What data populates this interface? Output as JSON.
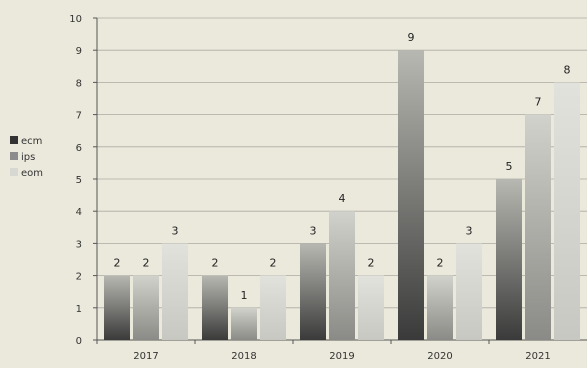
{
  "chart_data": {
    "type": "bar",
    "title": "",
    "xlabel": "",
    "ylabel": "",
    "categories": [
      "2017",
      "2018",
      "2019",
      "2020",
      "2021"
    ],
    "ylim": [
      0,
      10
    ],
    "yticks": [
      "0",
      "1",
      "2",
      "3",
      "4",
      "5",
      "6",
      "7",
      "8",
      "9",
      "10"
    ],
    "series": [
      {
        "name": "ecm",
        "values": [
          2,
          2,
          3,
          9,
          5
        ],
        "color": "#3c3c3c"
      },
      {
        "name": "ips",
        "values": [
          2,
          1,
          4,
          2,
          7
        ],
        "color": "#9a9a9a"
      },
      {
        "name": "eom",
        "values": [
          3,
          2,
          2,
          3,
          8
        ],
        "color": "#d6d6d0"
      }
    ],
    "grid": true,
    "legend": "left"
  }
}
